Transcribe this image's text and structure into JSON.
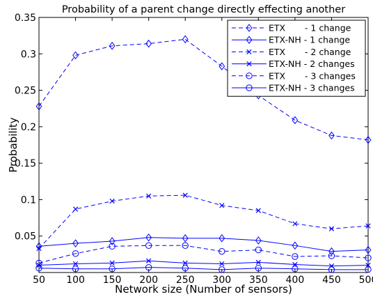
{
  "chart_data": {
    "type": "line",
    "title": "Probability of a parent change directly effecting another",
    "xlabel": "Network size (Number of sensors)",
    "ylabel": "Probability",
    "x": [
      50,
      100,
      150,
      200,
      250,
      300,
      350,
      400,
      450,
      500
    ],
    "xlim": [
      50,
      500
    ],
    "ylim": [
      0,
      0.35
    ],
    "xticks": [
      "50",
      "100",
      "150",
      "200",
      "250",
      "300",
      "350",
      "400",
      "450",
      "500"
    ],
    "yticks": [
      "0.05",
      "0.1",
      "0.15",
      "0.2",
      "0.25",
      "0.3",
      "0.35"
    ],
    "grid": false,
    "legend_position": "top-right",
    "series_color": "#0000ff",
    "series": [
      {
        "name": "ETX       - 1 change",
        "marker": "diamond",
        "line": "dashed",
        "values": [
          0.228,
          0.298,
          0.311,
          0.314,
          0.32,
          0.283,
          0.243,
          0.209,
          0.188,
          0.182
        ]
      },
      {
        "name": "ETX-NH - 1 change",
        "marker": "diamond",
        "line": "solid",
        "values": [
          0.036,
          0.04,
          0.043,
          0.048,
          0.047,
          0.047,
          0.044,
          0.037,
          0.029,
          0.031
        ]
      },
      {
        "name": "ETX       - 2 change",
        "marker": "x",
        "line": "dashed",
        "values": [
          0.033,
          0.087,
          0.098,
          0.105,
          0.106,
          0.092,
          0.085,
          0.067,
          0.06,
          0.064
        ]
      },
      {
        "name": "ETX-NH - 2 changes",
        "marker": "x",
        "line": "solid",
        "values": [
          0.01,
          0.012,
          0.013,
          0.016,
          0.013,
          0.012,
          0.014,
          0.011,
          0.009,
          0.01
        ]
      },
      {
        "name": "ETX       - 3 changes",
        "marker": "circle",
        "line": "dashed",
        "values": [
          0.013,
          0.026,
          0.036,
          0.037,
          0.037,
          0.029,
          0.031,
          0.022,
          0.023,
          0.02
        ]
      },
      {
        "name": "ETX-NH - 3 changes",
        "marker": "circle",
        "line": "solid",
        "values": [
          0.006,
          0.005,
          0.005,
          0.007,
          0.006,
          0.004,
          0.006,
          0.005,
          0.004,
          0.004
        ]
      }
    ]
  }
}
